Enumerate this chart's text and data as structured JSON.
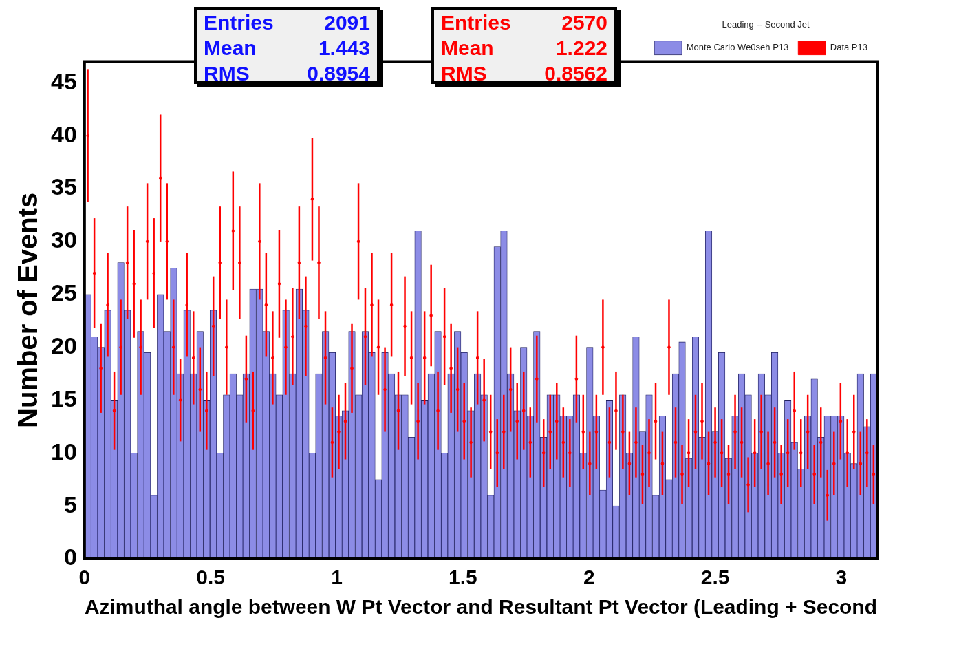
{
  "chart_data": {
    "type": "histogram",
    "xlabel": "Azimuthal angle between W Pt Vector and Resultant Pt Vector (Leading + Second",
    "ylabel": "Number of Events",
    "legend_title": "Leading -- Second Jet",
    "legend": "top right",
    "grid": false,
    "marker": "circle",
    "xlim": [
      0,
      3.142
    ],
    "xticks": [
      0,
      0.5,
      1,
      1.5,
      2,
      2.5,
      3
    ],
    "ylim": [
      0,
      47
    ],
    "yticks": [
      0,
      5,
      10,
      15,
      20,
      25,
      30,
      35,
      40,
      45
    ],
    "annotations": [
      "Entries 2091",
      "Mean 1.443",
      "RMS 0.8954",
      "Entries 2570",
      "Mean 1.222",
      "RMS 0.8562"
    ],
    "bins": [
      0,
      0.026,
      0.052,
      0.079,
      0.105,
      0.131,
      0.157,
      0.183,
      0.209,
      0.236,
      0.262,
      0.288,
      0.314,
      0.34,
      0.367,
      0.393,
      0.419,
      0.445,
      0.471,
      0.497,
      0.524,
      0.55,
      0.576,
      0.602,
      0.628,
      0.654,
      0.681,
      0.707,
      0.733,
      0.759,
      0.785,
      0.812,
      0.838,
      0.864,
      0.89,
      0.916,
      0.942,
      0.969,
      0.995,
      1.021,
      1.047,
      1.073,
      1.1,
      1.126,
      1.152,
      1.178,
      1.204,
      1.23,
      1.257,
      1.283,
      1.309,
      1.335,
      1.361,
      1.388,
      1.414,
      1.44,
      1.466,
      1.492,
      1.518,
      1.545,
      1.571,
      1.597,
      1.623,
      1.649,
      1.676,
      1.702,
      1.728,
      1.754,
      1.78,
      1.806,
      1.833,
      1.859,
      1.885,
      1.911,
      1.937,
      1.963,
      1.99,
      2.016,
      2.042,
      2.068,
      2.094,
      2.12,
      2.147,
      2.173,
      2.199,
      2.225,
      2.251,
      2.278,
      2.304,
      2.33,
      2.356,
      2.382,
      2.409,
      2.435,
      2.461,
      2.487,
      2.513,
      2.539,
      2.566,
      2.592,
      2.618,
      2.644,
      2.67,
      2.697,
      2.723,
      2.749,
      2.775,
      2.801,
      2.827,
      2.854,
      2.88,
      2.906,
      2.932,
      2.958,
      2.985,
      3.011,
      3.037,
      3.063,
      3.089,
      3.115,
      3.142
    ],
    "series": [
      {
        "name": "Monte Carlo We0seh P13",
        "type": "histogram",
        "color": "#8c8ce6",
        "values": [
          25,
          21,
          20,
          23.5,
          15,
          28,
          23.5,
          10,
          21.5,
          19.5,
          6,
          25,
          21.5,
          27.5,
          17.5,
          23.5,
          17.5,
          21.5,
          15,
          23.5,
          10,
          15.5,
          17.5,
          15.5,
          17.5,
          25.5,
          25.5,
          21.5,
          17.5,
          15.5,
          23.5,
          17.5,
          25.5,
          23.5,
          10,
          17.5,
          21.5,
          19.5,
          13.5,
          14,
          21.5,
          15.5,
          21.5,
          19.5,
          7.5,
          19.5,
          17.5,
          15.5,
          15.5,
          11.5,
          31,
          15,
          17.5,
          21.5,
          10,
          17.5,
          21.5,
          19.5,
          14,
          17.5,
          15.5,
          6,
          29.5,
          31,
          17.5,
          14,
          20,
          13.5,
          21.5,
          11.5,
          15.5,
          15.5,
          13.5,
          13.5,
          15.5,
          10,
          20,
          13.5,
          6.5,
          15,
          5,
          15.5,
          10,
          21,
          12,
          15.5,
          6,
          13.5,
          7.5,
          17.5,
          20.5,
          9.5,
          21,
          11.5,
          31,
          12,
          19.5,
          9.5,
          13.5,
          17.5,
          15.5,
          10,
          17.5,
          15.5,
          19.5,
          10,
          15,
          11,
          8.5,
          13.5,
          17,
          11.5,
          13.5,
          13.5,
          13.5,
          10,
          9,
          17.5,
          12.5,
          17.5
        ]
      },
      {
        "name": "Data P13",
        "type": "scatter",
        "color": "#ff0000",
        "x": [
          0.013,
          0.039,
          0.065,
          0.092,
          0.118,
          0.144,
          0.17,
          0.196,
          0.223,
          0.249,
          0.275,
          0.301,
          0.327,
          0.353,
          0.38,
          0.406,
          0.432,
          0.458,
          0.484,
          0.511,
          0.537,
          0.563,
          0.589,
          0.615,
          0.641,
          0.668,
          0.694,
          0.72,
          0.746,
          0.772,
          0.798,
          0.825,
          0.851,
          0.877,
          0.903,
          0.929,
          0.955,
          0.982,
          1.008,
          1.034,
          1.06,
          1.086,
          1.113,
          1.139,
          1.165,
          1.191,
          1.217,
          1.244,
          1.27,
          1.296,
          1.322,
          1.348,
          1.374,
          1.401,
          1.427,
          1.453,
          1.479,
          1.505,
          1.532,
          1.558,
          1.584,
          1.61,
          1.636,
          1.662,
          1.689,
          1.715,
          1.741,
          1.767,
          1.793,
          1.82,
          1.846,
          1.872,
          1.898,
          1.924,
          1.95,
          1.977,
          2.003,
          2.029,
          2.055,
          2.081,
          2.107,
          2.134,
          2.16,
          2.186,
          2.212,
          2.238,
          2.264,
          2.291,
          2.317,
          2.343,
          2.369,
          2.395,
          2.422,
          2.448,
          2.474,
          2.5,
          2.526,
          2.553,
          2.579,
          2.605,
          2.631,
          2.657,
          2.683,
          2.71,
          2.736,
          2.762,
          2.788,
          2.814,
          2.84,
          2.867,
          2.893,
          2.919,
          2.945,
          2.971,
          2.997,
          3.024,
          3.05,
          3.076,
          3.102,
          3.128
        ],
        "values": [
          40,
          27,
          18,
          24,
          14,
          20,
          28,
          26,
          20,
          30,
          27,
          36,
          30,
          20,
          15,
          24,
          19,
          16,
          14,
          22,
          28,
          20,
          31,
          28,
          17,
          14,
          30,
          24,
          19,
          26,
          20,
          21,
          28,
          22,
          34,
          28,
          19,
          11,
          12,
          13,
          18,
          30,
          21,
          24,
          20,
          16,
          24,
          14,
          22,
          19,
          13,
          19,
          23,
          14,
          21,
          18,
          16,
          13,
          11,
          19,
          15,
          12,
          10,
          12,
          16,
          13,
          14,
          11,
          17,
          10,
          12,
          13,
          11,
          10,
          17,
          12,
          9,
          12,
          20,
          11,
          14,
          12,
          9,
          11,
          8,
          10,
          13,
          9,
          20,
          11,
          8,
          10,
          12,
          13,
          9,
          11,
          10,
          8,
          12,
          11,
          7,
          10,
          12,
          9,
          11,
          8,
          10,
          14,
          10,
          12,
          8,
          11,
          6,
          9,
          13,
          10,
          12,
          9,
          10,
          8
        ],
        "errors": [
          6.3,
          5.2,
          4.2,
          4.9,
          3.7,
          4.5,
          5.3,
          5.1,
          4.5,
          5.5,
          5.2,
          6,
          5.5,
          4.5,
          3.9,
          4.9,
          4.4,
          4,
          3.7,
          4.7,
          5.3,
          4.5,
          5.6,
          5.3,
          4.1,
          3.7,
          5.5,
          4.9,
          4.4,
          5.1,
          4.5,
          4.6,
          5.3,
          4.7,
          5.8,
          5.3,
          4.4,
          3.3,
          3.5,
          3.6,
          4.2,
          5.5,
          4.6,
          4.9,
          4.5,
          4,
          4.9,
          3.7,
          4.7,
          4.4,
          3.6,
          4.4,
          4.8,
          3.7,
          4.6,
          4.2,
          4,
          3.6,
          3.3,
          4.4,
          3.9,
          3.5,
          3.2,
          3.5,
          4,
          3.6,
          3.7,
          3.3,
          4.1,
          3.2,
          3.5,
          3.6,
          3.3,
          3.2,
          4.1,
          3.5,
          3,
          3.5,
          4.5,
          3.3,
          3.7,
          3.5,
          3,
          3.3,
          2.8,
          3.2,
          3.6,
          3,
          4.5,
          3.3,
          2.8,
          3.2,
          3.5,
          3.6,
          3,
          3.3,
          3.2,
          2.8,
          3.5,
          3.3,
          2.6,
          3.2,
          3.5,
          3,
          3.3,
          2.8,
          3.2,
          3.7,
          3.2,
          3.5,
          2.8,
          3.3,
          2.4,
          3,
          3.6,
          3.2,
          3.5,
          3,
          3.2,
          2.8
        ]
      }
    ]
  }
}
